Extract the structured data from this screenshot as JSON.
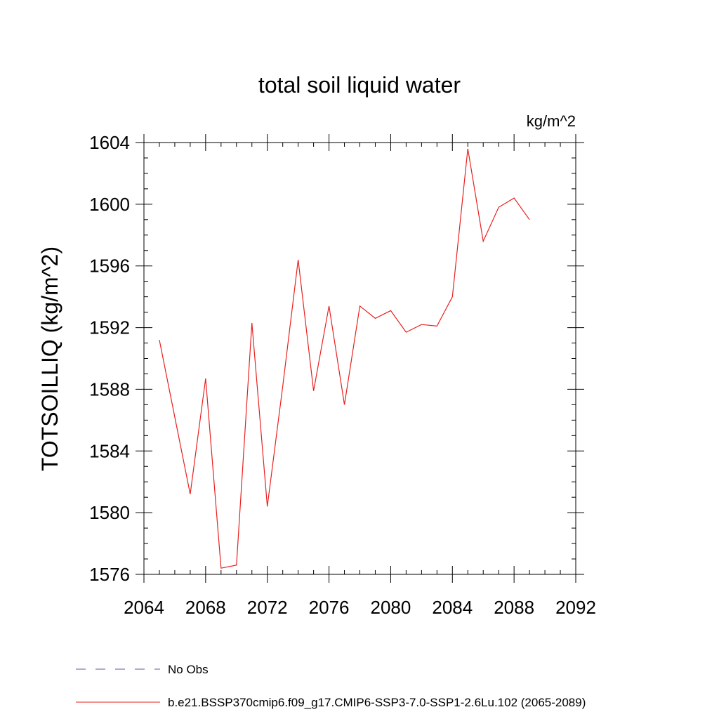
{
  "chart_data": {
    "type": "line",
    "title": "total soil liquid water",
    "units_label": "kg/m^2",
    "ylabel": "TOTSOILLIQ  (kg/m^2)",
    "xlabel": "",
    "xlim": [
      2064,
      2092
    ],
    "ylim": [
      1576,
      1604
    ],
    "x_ticks": [
      2064,
      2068,
      2072,
      2076,
      2080,
      2084,
      2088,
      2092
    ],
    "x_tick_labels": [
      "2064",
      "2068",
      "2072",
      "2076",
      "2080",
      "2084",
      "2088",
      "2092"
    ],
    "y_ticks": [
      1576,
      1580,
      1584,
      1588,
      1592,
      1596,
      1600,
      1604
    ],
    "y_tick_labels": [
      "1576",
      "1580",
      "1584",
      "1588",
      "1592",
      "1596",
      "1600",
      "1604"
    ],
    "grid": false,
    "legend_position": "bottom-left",
    "legend": [
      {
        "name": "No Obs",
        "style": "dashed",
        "color": "#5a5aa8"
      },
      {
        "name": "b.e21.BSSP370cmip6.f09_g17.CMIP6-SSP3-7.0-SSP1-2.6Lu.102 (2065-2089)",
        "style": "solid",
        "color": "#e8201e"
      }
    ],
    "series": [
      {
        "name": "b.e21.BSSP370cmip6.f09_g17.CMIP6-SSP3-7.0-SSP1-2.6Lu.102 (2065-2089)",
        "color": "#e8201e",
        "x": [
          2065,
          2066,
          2067,
          2068,
          2069,
          2070,
          2071,
          2072,
          2073,
          2074,
          2075,
          2076,
          2077,
          2078,
          2079,
          2080,
          2081,
          2082,
          2083,
          2084,
          2085,
          2086,
          2087,
          2088,
          2089
        ],
        "values": [
          1591.2,
          1586.2,
          1581.2,
          1588.7,
          1576.4,
          1576.6,
          1592.3,
          1580.4,
          1588.2,
          1596.4,
          1587.9,
          1593.4,
          1587.0,
          1593.4,
          1592.6,
          1593.1,
          1591.7,
          1592.2,
          1592.1,
          1594.0,
          1603.6,
          1597.6,
          1599.8,
          1600.4,
          1599.0
        ]
      }
    ]
  }
}
